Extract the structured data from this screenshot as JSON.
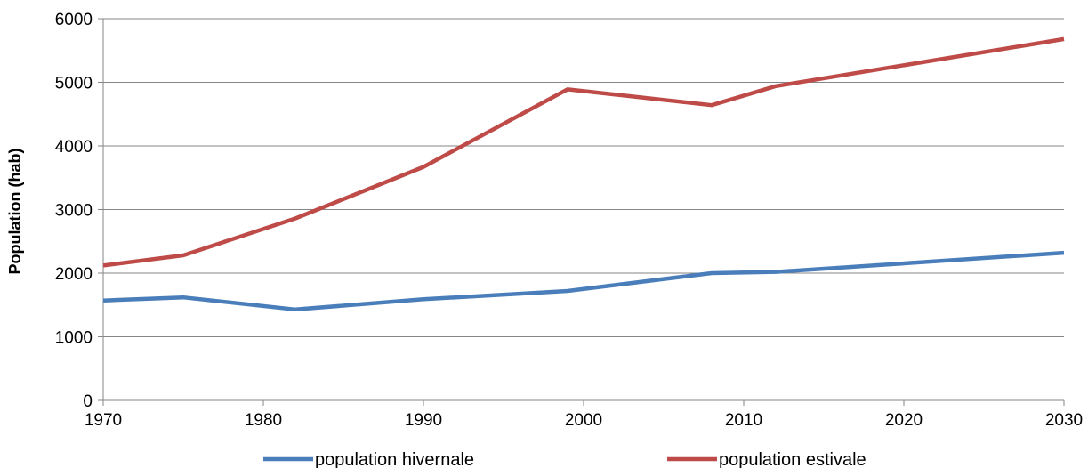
{
  "chart_data": {
    "type": "line",
    "title": "",
    "xlabel": "",
    "ylabel": "Population (hab)",
    "xlim": [
      1970,
      2030
    ],
    "ylim": [
      0,
      6000
    ],
    "x_ticks": [
      1970,
      1980,
      1990,
      2000,
      2010,
      2020,
      2030
    ],
    "y_ticks": [
      0,
      1000,
      2000,
      3000,
      4000,
      5000,
      6000
    ],
    "grid": "horizontal",
    "legend_position": "bottom",
    "series": [
      {
        "name": "population hivernale",
        "color": "#4a7ebb",
        "points": [
          {
            "x": 1970,
            "y": 1570
          },
          {
            "x": 1975,
            "y": 1620
          },
          {
            "x": 1982,
            "y": 1430
          },
          {
            "x": 1990,
            "y": 1590
          },
          {
            "x": 1999,
            "y": 1720
          },
          {
            "x": 2008,
            "y": 2000
          },
          {
            "x": 2012,
            "y": 2020
          },
          {
            "x": 2030,
            "y": 2320
          }
        ]
      },
      {
        "name": "population estivale",
        "color": "#be4b48",
        "points": [
          {
            "x": 1970,
            "y": 2120
          },
          {
            "x": 1975,
            "y": 2280
          },
          {
            "x": 1982,
            "y": 2860
          },
          {
            "x": 1990,
            "y": 3670
          },
          {
            "x": 1999,
            "y": 4890
          },
          {
            "x": 2008,
            "y": 4640
          },
          {
            "x": 2012,
            "y": 4940
          },
          {
            "x": 2030,
            "y": 5680
          }
        ]
      }
    ]
  }
}
